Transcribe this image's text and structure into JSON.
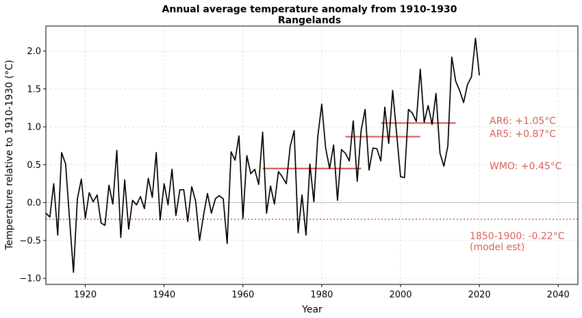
{
  "chart_data": {
    "type": "line",
    "title": "Annual average temperature anomaly from 1910-1930",
    "subtitle": "Rangelands",
    "xlabel": "Year",
    "ylabel": "Temperature relative to 1910-1930 (°C)",
    "xlim": [
      1910,
      2045
    ],
    "ylim": [
      -1.08,
      2.33
    ],
    "xticks": [
      1920,
      1940,
      1960,
      1980,
      2000,
      2020,
      2040
    ],
    "yticks": [
      -1.0,
      -0.5,
      0.0,
      0.5,
      1.0,
      1.5,
      2.0
    ],
    "ytick_labels": [
      "−1.0",
      "−0.5",
      "0.0",
      "0.5",
      "1.0",
      "1.5",
      "2.0"
    ],
    "grid": true,
    "line_color": "#000000",
    "annotation_color": "#d9605c",
    "x": [
      1910,
      1911,
      1912,
      1913,
      1914,
      1915,
      1916,
      1917,
      1918,
      1919,
      1920,
      1921,
      1922,
      1923,
      1924,
      1925,
      1926,
      1927,
      1928,
      1929,
      1930,
      1931,
      1932,
      1933,
      1934,
      1935,
      1936,
      1937,
      1938,
      1939,
      1940,
      1941,
      1942,
      1943,
      1944,
      1945,
      1946,
      1947,
      1948,
      1949,
      1950,
      1951,
      1952,
      1953,
      1954,
      1955,
      1956,
      1957,
      1958,
      1959,
      1960,
      1961,
      1962,
      1963,
      1964,
      1965,
      1966,
      1967,
      1968,
      1969,
      1970,
      1971,
      1972,
      1973,
      1974,
      1975,
      1976,
      1977,
      1978,
      1979,
      1980,
      1981,
      1982,
      1983,
      1984,
      1985,
      1986,
      1987,
      1988,
      1989,
      1990,
      1991,
      1992,
      1993,
      1994,
      1995,
      1996,
      1997,
      1998,
      1999,
      2000,
      2001,
      2002,
      2003,
      2004,
      2005,
      2006,
      2007,
      2008,
      2009,
      2010,
      2011,
      2012,
      2013,
      2014,
      2015,
      2016,
      2017,
      2018,
      2019,
      2020
    ],
    "y": [
      -0.14,
      -0.19,
      0.25,
      -0.43,
      0.66,
      0.51,
      -0.21,
      -0.92,
      0.05,
      0.31,
      -0.21,
      0.13,
      0.01,
      0.1,
      -0.27,
      -0.3,
      0.23,
      -0.02,
      0.69,
      -0.46,
      0.3,
      -0.35,
      0.03,
      -0.03,
      0.08,
      -0.08,
      0.32,
      0.07,
      0.66,
      -0.23,
      0.25,
      -0.03,
      0.44,
      -0.17,
      0.17,
      0.17,
      -0.25,
      0.21,
      0.02,
      -0.5,
      -0.17,
      0.12,
      -0.14,
      0.05,
      0.09,
      0.05,
      -0.54,
      0.67,
      0.56,
      0.88,
      -0.21,
      0.62,
      0.38,
      0.44,
      0.24,
      0.93,
      -0.14,
      0.22,
      -0.02,
      0.41,
      0.34,
      0.25,
      0.74,
      0.95,
      -0.4,
      0.1,
      -0.43,
      0.51,
      0.01,
      0.87,
      1.3,
      0.72,
      0.45,
      0.76,
      0.03,
      0.7,
      0.65,
      0.55,
      1.08,
      0.28,
      0.95,
      1.23,
      0.43,
      0.72,
      0.71,
      0.55,
      1.26,
      0.78,
      1.48,
      0.92,
      0.34,
      0.33,
      1.23,
      1.18,
      1.07,
      1.76,
      1.06,
      1.28,
      1.03,
      1.44,
      0.65,
      0.48,
      0.75,
      1.92,
      1.6,
      1.48,
      1.32,
      1.56,
      1.66,
      2.17,
      1.68
    ],
    "hlines": [
      {
        "y": 0.45,
        "x": [
          1965,
          1990
        ],
        "label": "WMO: +0.45°C"
      },
      {
        "y": 0.87,
        "x": [
          1986,
          2005
        ],
        "label": "AR5: +0.87°C"
      },
      {
        "y": 1.05,
        "x": [
          1995,
          2014
        ],
        "label": "AR6: +1.05°C"
      }
    ],
    "baseline": {
      "y": -0.22,
      "label_line1": "1850-1900: -0.22°C",
      "label_line2": "(model est)"
    },
    "zero_line": true
  }
}
